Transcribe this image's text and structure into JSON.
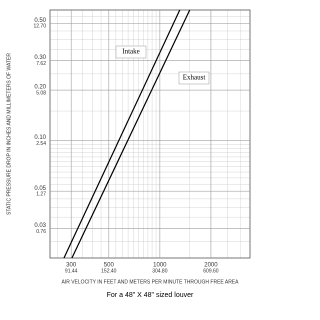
{
  "chart_data": {
    "type": "line",
    "y_label": "STATIC PRESSURE DROP IN INCHES AND MILLIMETERS OF WATER",
    "x_label": "AIR VELOCITY IN FEET AND METERS PER MINUTE THROUGH FREE AREA",
    "caption": "For a 48\" X 48\" sized louver",
    "log_x": true,
    "log_y": true,
    "grid": true,
    "xlim": [
      225,
      3400
    ],
    "ylim": [
      0.02,
      0.6
    ],
    "xticks": [
      300,
      500,
      1000,
      2000
    ],
    "x2lim": [
      68.58,
      1036.32
    ],
    "x2ticks": [
      {
        "value": 91.44,
        "label": "91.44"
      },
      {
        "value": 152.4,
        "label": "152.40"
      },
      {
        "value": 304.8,
        "label": "304.80"
      },
      {
        "value": 609.6,
        "label": "609.60"
      }
    ],
    "yticks": [
      0.03,
      0.05,
      {
        "value": 0.1,
        "label": "0.10"
      },
      {
        "value": 0.2,
        "label": "0.20"
      },
      {
        "value": 0.3,
        "label": "0.30"
      },
      {
        "value": 0.5,
        "label": "0.50"
      }
    ],
    "y2lim": [
      0.508,
      15.24
    ],
    "y2ticks": [
      0.76,
      1.27,
      2.54,
      5.08,
      7.62,
      {
        "value": 12.7,
        "label": "12.70"
      }
    ],
    "series": [
      {
        "name": "Intake",
        "color": "#000000",
        "x": [
          272,
          1310
        ],
        "values": [
          0.02,
          0.6
        ]
      },
      {
        "name": "Exhaust",
        "color": "#000000",
        "x": [
          303,
          1500
        ],
        "values": [
          0.02,
          0.6
        ]
      }
    ]
  }
}
